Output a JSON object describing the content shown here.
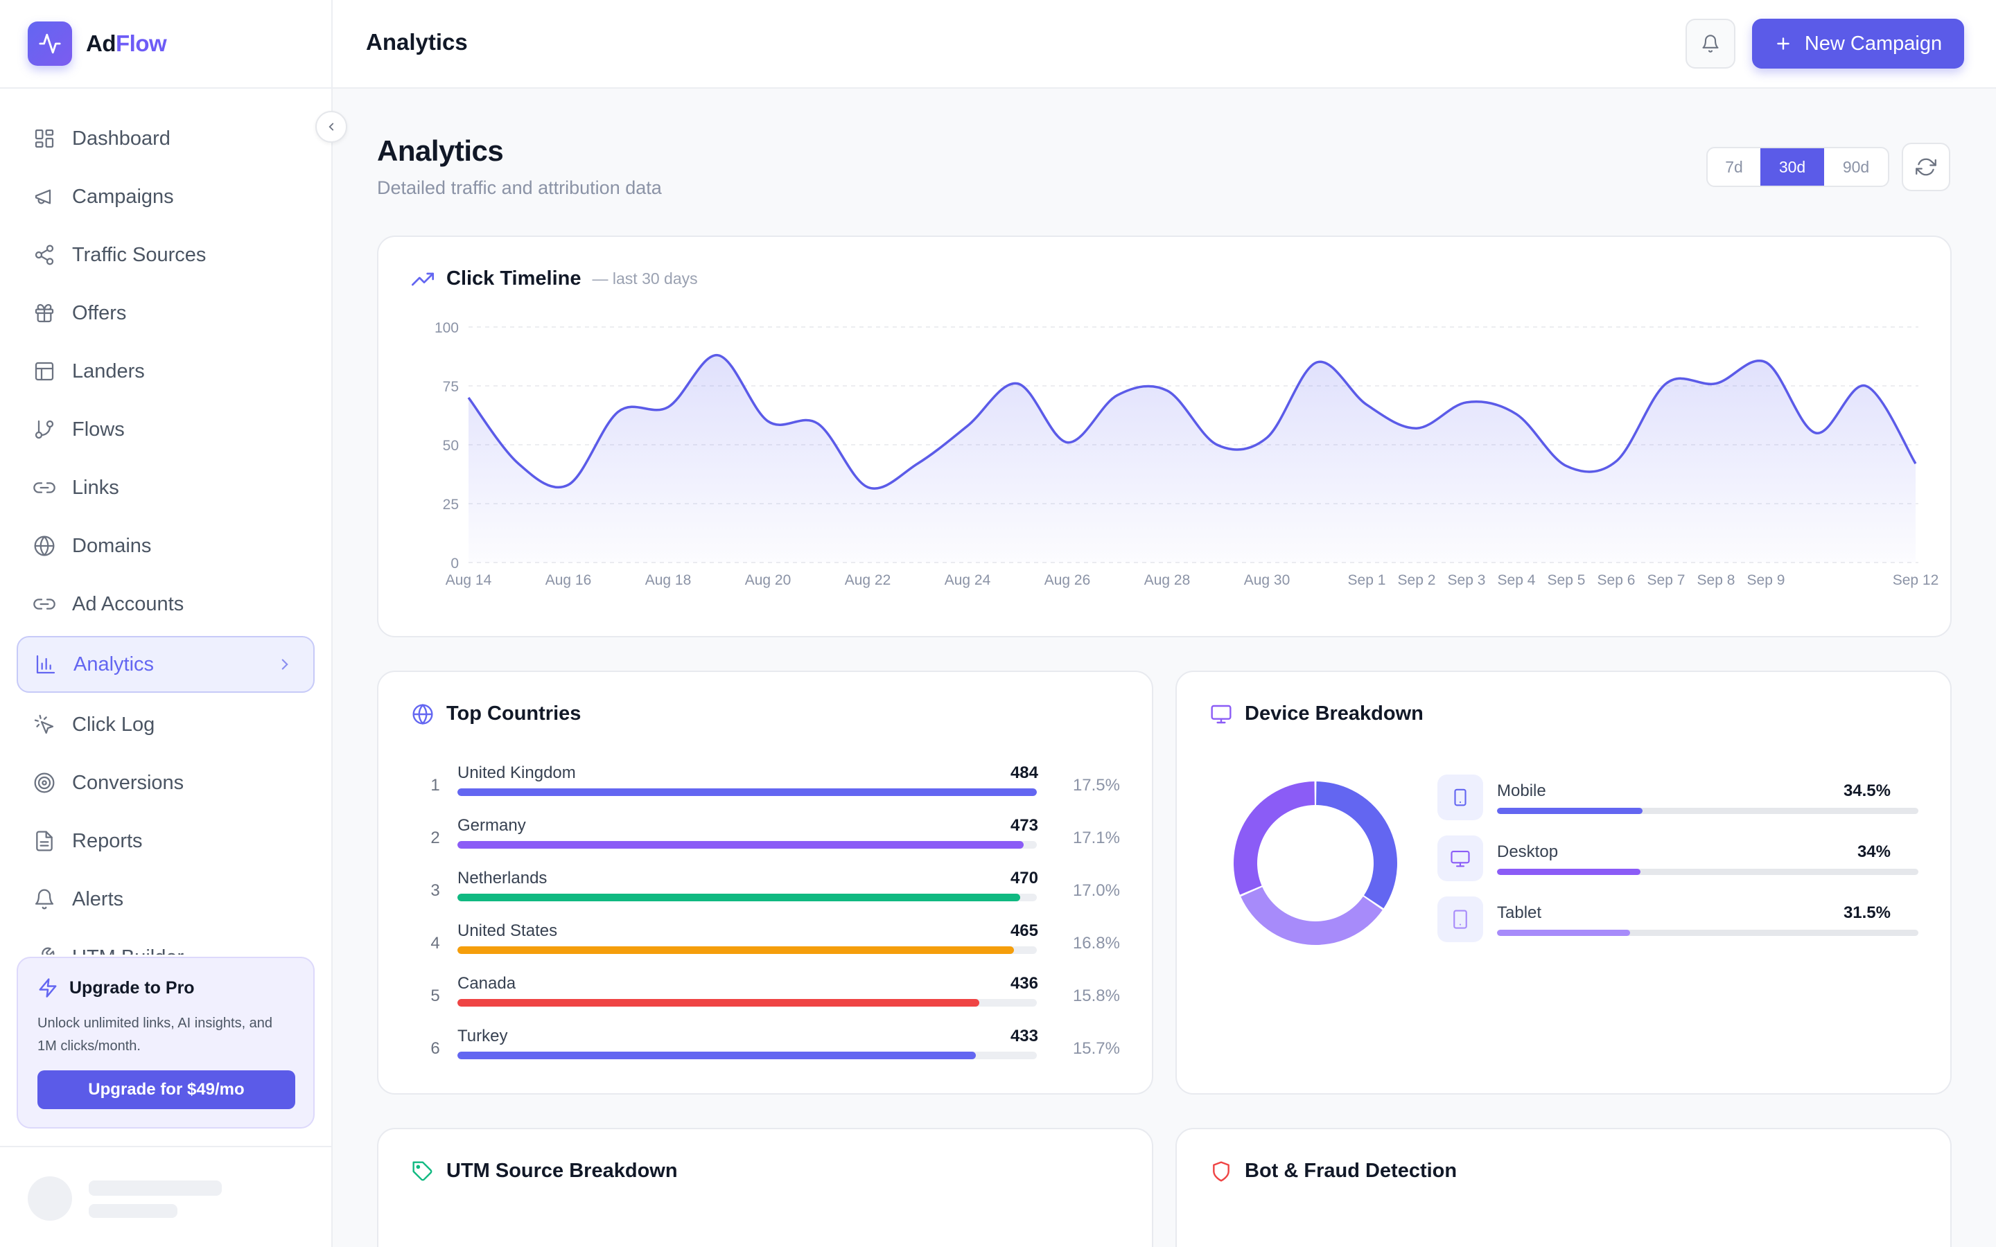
{
  "brand": {
    "name_a": "Ad",
    "name_b": "Flow"
  },
  "sidebar": {
    "items": [
      {
        "label": "Dashboard",
        "icon": "dashboard-icon"
      },
      {
        "label": "Campaigns",
        "icon": "megaphone-icon"
      },
      {
        "label": "Traffic Sources",
        "icon": "share-icon"
      },
      {
        "label": "Offers",
        "icon": "gift-icon"
      },
      {
        "label": "Landers",
        "icon": "layout-icon"
      },
      {
        "label": "Flows",
        "icon": "git-branch-icon"
      },
      {
        "label": "Links",
        "icon": "link-icon"
      },
      {
        "label": "Domains",
        "icon": "globe-icon"
      },
      {
        "label": "Ad Accounts",
        "icon": "link-icon"
      },
      {
        "label": "Analytics",
        "icon": "bar-chart-icon",
        "active": true
      },
      {
        "label": "Click Log",
        "icon": "pointer-icon"
      },
      {
        "label": "Conversions",
        "icon": "target-icon"
      },
      {
        "label": "Reports",
        "icon": "file-icon"
      },
      {
        "label": "Alerts",
        "icon": "bell-icon"
      },
      {
        "label": "UTM Builder",
        "icon": "wrench-icon"
      }
    ],
    "upgrade": {
      "title": "Upgrade to Pro",
      "text": "Unlock unlimited links, AI insights, and 1M clicks/month.",
      "button": "Upgrade for $49/mo"
    }
  },
  "header": {
    "title": "Analytics",
    "new_campaign": "New Campaign"
  },
  "page": {
    "title": "Analytics",
    "subtitle": "Detailed traffic and attribution data",
    "ranges": [
      "7d",
      "30d",
      "90d"
    ],
    "selected_range": "30d"
  },
  "timeline": {
    "title": "Click Timeline",
    "subtitle": "— last 30 days",
    "chart_data": {
      "type": "area",
      "yticks": [
        0,
        25,
        50,
        75,
        100
      ],
      "ylim": [
        0,
        100
      ],
      "tick_labels": [
        "Aug 14",
        "Aug 16",
        "Aug 18",
        "Aug 20",
        "Aug 22",
        "Aug 24",
        "Aug 26",
        "Aug 28",
        "Aug 30",
        "Sep 1",
        "Sep 2",
        "Sep 3",
        "Sep 4",
        "Sep 5",
        "Sep 6",
        "Sep 7",
        "Sep 8",
        "Sep 9",
        "Sep 12"
      ],
      "x": [
        "Aug 14",
        "Aug 15",
        "Aug 16",
        "Aug 17",
        "Aug 18",
        "Aug 19",
        "Aug 20",
        "Aug 21",
        "Aug 22",
        "Aug 23",
        "Aug 24",
        "Aug 25",
        "Aug 26",
        "Aug 27",
        "Aug 28",
        "Aug 29",
        "Aug 30",
        "Aug 31",
        "Sep 1",
        "Sep 2",
        "Sep 3",
        "Sep 4",
        "Sep 5",
        "Sep 6",
        "Sep 7",
        "Sep 8",
        "Sep 9",
        "Sep 10",
        "Sep 11",
        "Sep 12"
      ],
      "values": [
        70,
        42,
        33,
        64,
        66,
        88,
        60,
        59,
        32,
        42,
        58,
        76,
        51,
        71,
        73,
        50,
        53,
        85,
        67,
        57,
        68,
        63,
        41,
        43,
        76,
        76,
        85,
        55,
        75,
        42
      ],
      "grid": true
    }
  },
  "countries": {
    "title": "Top Countries",
    "rows": [
      {
        "rank": "1",
        "name": "United Kingdom",
        "value": "484",
        "pct": "17.5%",
        "fill": 1.0,
        "color": "#6366f1"
      },
      {
        "rank": "2",
        "name": "Germany",
        "value": "473",
        "pct": "17.1%",
        "fill": 0.977,
        "color": "#8b5cf6"
      },
      {
        "rank": "3",
        "name": "Netherlands",
        "value": "470",
        "pct": "17.0%",
        "fill": 0.971,
        "color": "#10b981"
      },
      {
        "rank": "4",
        "name": "United States",
        "value": "465",
        "pct": "16.8%",
        "fill": 0.961,
        "color": "#f59e0b"
      },
      {
        "rank": "5",
        "name": "Canada",
        "value": "436",
        "pct": "15.8%",
        "fill": 0.901,
        "color": "#ef4444"
      },
      {
        "rank": "6",
        "name": "Turkey",
        "value": "433",
        "pct": "15.7%",
        "fill": 0.895,
        "color": "#6366f1"
      }
    ]
  },
  "devices": {
    "title": "Device Breakdown",
    "rows": [
      {
        "name": "Mobile",
        "value": "34.5%",
        "fill": 0.345,
        "color": "#6366f1",
        "icon": "smartphone-icon"
      },
      {
        "name": "Desktop",
        "value": "34%",
        "fill": 0.34,
        "color": "#8b5cf6",
        "icon": "monitor-icon"
      },
      {
        "name": "Tablet",
        "value": "31.5%",
        "fill": 0.315,
        "color": "#a78bfa",
        "icon": "tablet-icon"
      }
    ],
    "chart_data": {
      "type": "pie",
      "labels": [
        "Mobile",
        "Desktop",
        "Tablet"
      ],
      "values": [
        34.5,
        34,
        31.5
      ],
      "colors": [
        "#6366f1",
        "#a78bfa",
        "#8b5cf6"
      ]
    }
  },
  "utm": {
    "title": "UTM Source Breakdown"
  },
  "bot": {
    "title": "Bot & Fraud Detection"
  }
}
